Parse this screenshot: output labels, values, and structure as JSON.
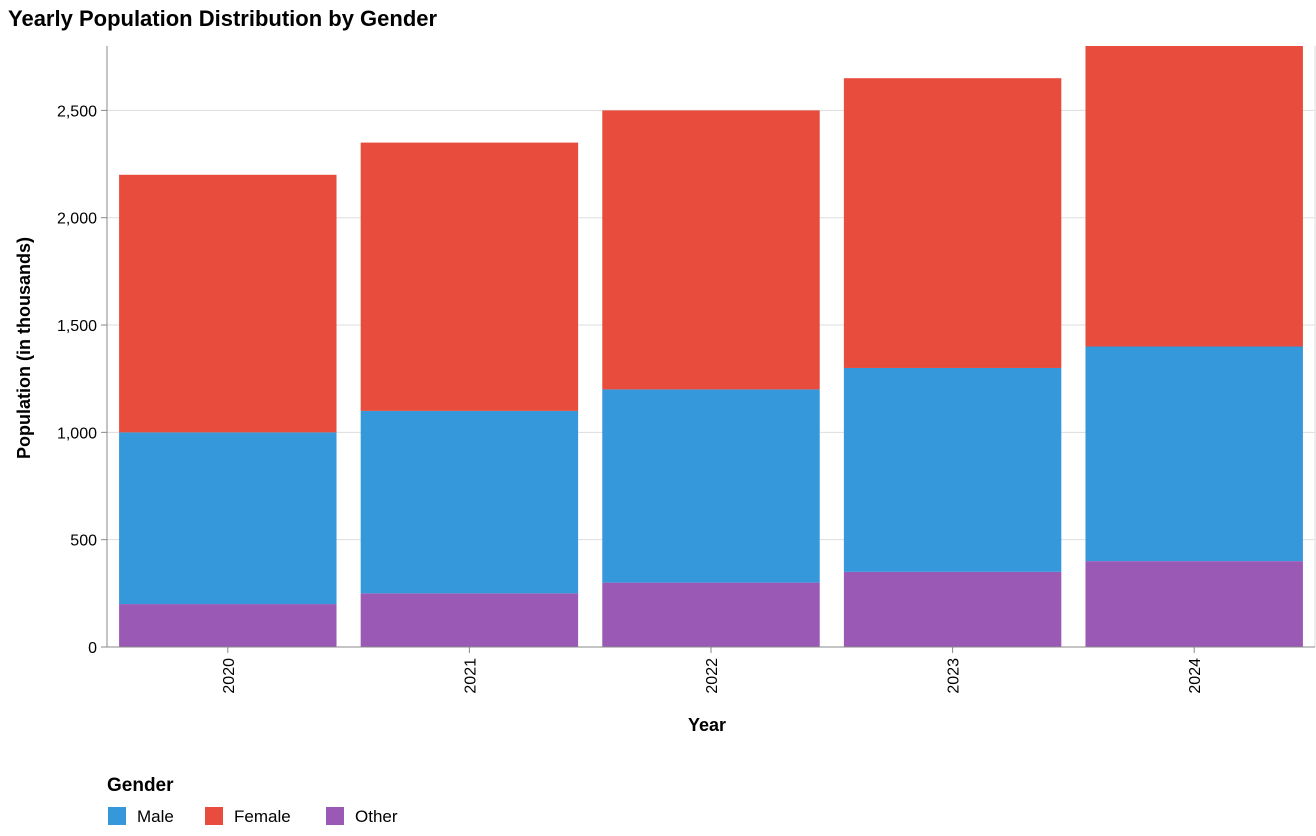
{
  "chart_data": {
    "type": "bar",
    "stacked": true,
    "title": "Yearly Population Distribution by Gender",
    "xlabel": "Year",
    "ylabel": "Population (in thousands)",
    "categories": [
      "2020",
      "2021",
      "2022",
      "2023",
      "2024"
    ],
    "series": [
      {
        "name": "Other",
        "color": "#9b59b6",
        "values": [
          200,
          250,
          300,
          350,
          400
        ]
      },
      {
        "name": "Male",
        "color": "#3498db",
        "values": [
          800,
          850,
          900,
          950,
          1000
        ]
      },
      {
        "name": "Female",
        "color": "#e74c3c",
        "values": [
          1200,
          1250,
          1300,
          1350,
          1400
        ]
      }
    ],
    "ylim": [
      0,
      2800
    ],
    "yticks": [
      0,
      500,
      1000,
      1500,
      2000,
      2500
    ],
    "grid": true,
    "legend": {
      "title": "Gender",
      "position": "bottom-left",
      "entries": [
        {
          "name": "Male",
          "color": "#3498db"
        },
        {
          "name": "Female",
          "color": "#e74c3c"
        },
        {
          "name": "Other",
          "color": "#9b59b6"
        }
      ]
    }
  }
}
